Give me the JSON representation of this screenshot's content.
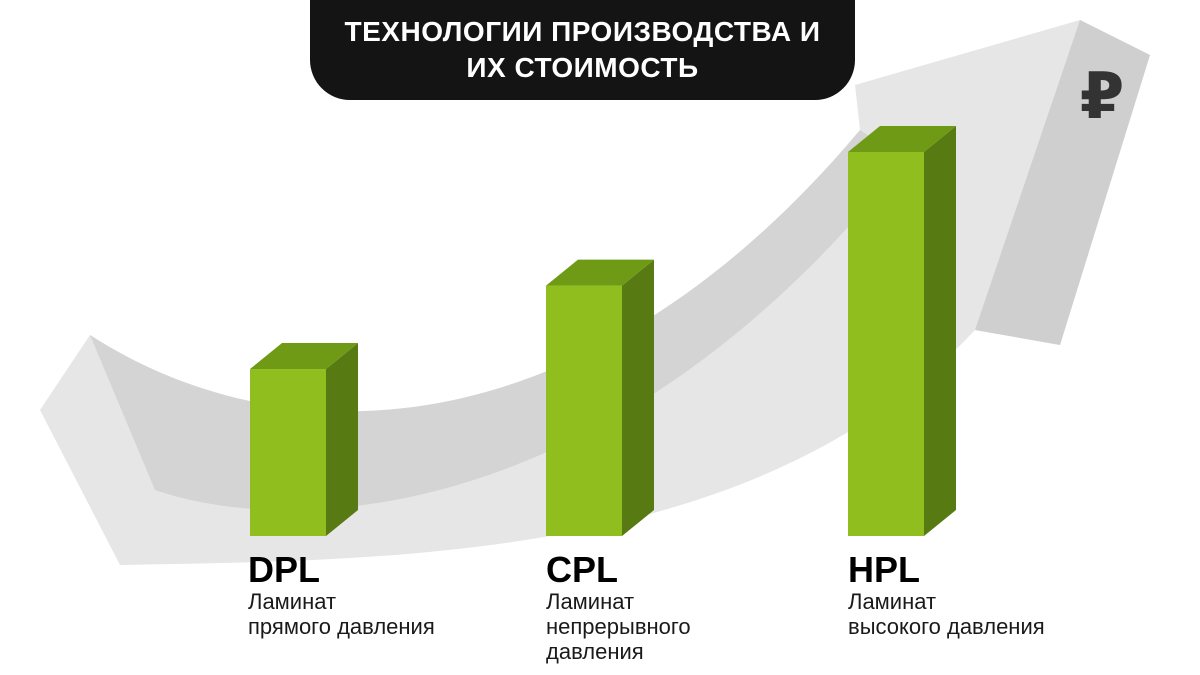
{
  "title": {
    "line1": "ТЕХНОЛОГИИ ПРОИЗВОДСТВА И",
    "line2": "ИХ СТОИМОСТЬ"
  },
  "currency_symbol": "₽",
  "colors": {
    "bar_front": "#8fbe1e",
    "bar_top": "#6f9a15",
    "bar_side": "#587a12",
    "arrow_light": "#e8e8e8",
    "arrow_shade": "#cfcfcf",
    "title_bg": "#141414"
  },
  "chart_data": {
    "type": "bar",
    "title": "ТЕХНОЛОГИИ ПРОИЗВОДСТВА И ИХ СТОИМОСТЬ",
    "categories": [
      "DPL",
      "CPL",
      "HPL"
    ],
    "category_descriptions": [
      "Ламинат прямого давления",
      "Ламинат непрерывного давления",
      "Ламинат высокого давления"
    ],
    "values": [
      2,
      3,
      4.6
    ],
    "ylim": [
      0,
      5
    ],
    "xlabel": "",
    "ylabel": "",
    "grid": false,
    "legend": "none"
  },
  "labels": [
    {
      "name": "DPL",
      "desc_lines": [
        "Ламинат",
        "прямого давления"
      ]
    },
    {
      "name": "CPL",
      "desc_lines": [
        "Ламинат",
        "непрерывного",
        "давления"
      ]
    },
    {
      "name": "HPL",
      "desc_lines": [
        "Ламинат",
        "высокого давления"
      ]
    }
  ]
}
